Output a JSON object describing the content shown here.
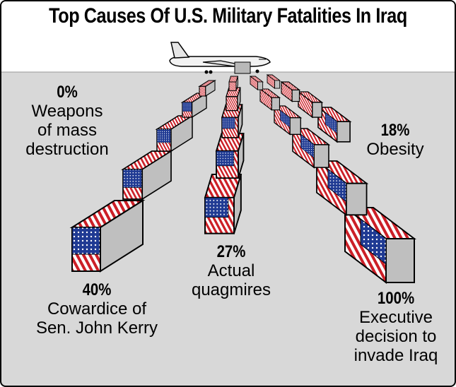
{
  "title": "Top Causes Of U.S. Military Fatalities In Iraq",
  "colors": {
    "flag_red": "#cc1f27",
    "flag_blue": "#1f3a93",
    "tarmac": "#d8d8d8",
    "sky": "#ffffff"
  },
  "icons": {
    "airplane": "cargo-plane-icon",
    "coffin": "flag-draped-coffin-icon"
  },
  "causes": [
    {
      "percent": "0%",
      "lines": [
        "Weapons",
        "of mass",
        "destruction"
      ]
    },
    {
      "percent": "18%",
      "lines": [
        "Obesity"
      ]
    },
    {
      "percent": "27%",
      "lines": [
        "Actual",
        "quagmires"
      ]
    },
    {
      "percent": "40%",
      "lines": [
        "Cowardice of",
        "Sen. John Kerry"
      ]
    },
    {
      "percent": "100%",
      "lines": [
        "Executive",
        "decision to",
        "invade Iraq"
      ]
    }
  ]
}
